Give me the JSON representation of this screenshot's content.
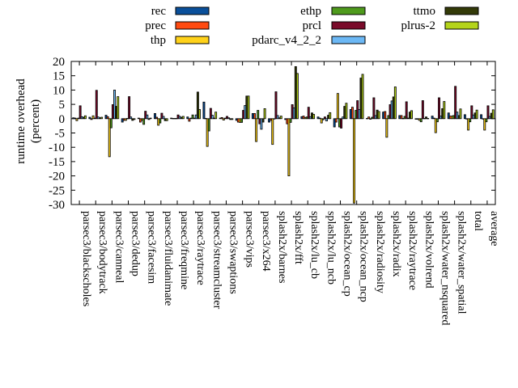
{
  "chart_data": {
    "type": "bar",
    "ylabel": [
      "runtime overhead",
      "(percent)"
    ],
    "ylim": [
      -30,
      20
    ],
    "yticks": [
      20,
      15,
      10,
      5,
      0,
      -5,
      -10,
      -15,
      -20,
      -25,
      -30
    ],
    "legend_position": "top",
    "categories": [
      "parsec3/blackscholes",
      "parsec3/bodytrack",
      "parsec3/canneal",
      "parsec3/dedup",
      "parsec3/facesim",
      "parsec3/fluidanimate",
      "parsec3/freqmine",
      "parsec3/raytrace",
      "parsec3/streamcluster",
      "parsec3/swaptions",
      "parsec3/vips",
      "parsec3/x264",
      "splash2x/barnes",
      "splash2x/fft",
      "splash2x/lu_cb",
      "splash2x/lu_ncb",
      "splash2x/ocean_cp",
      "splash2x/ocean_ncp",
      "splash2x/radiosity",
      "splash2x/radix",
      "splash2x/raytrace",
      "splash2x/volrend",
      "splash2x/water_nsquared",
      "splash2x/water_spatial",
      "total",
      "average"
    ],
    "series": [
      {
        "name": "rec",
        "color": "#0a4f9a",
        "values": [
          0.3,
          0.5,
          1.2,
          -1.2,
          0.2,
          1.8,
          0.2,
          0.6,
          5.8,
          0.2,
          -0.6,
          1.8,
          -1.2,
          -0.3,
          0.7,
          0.6,
          -2.9,
          3.2,
          0.1,
          2.3,
          1.1,
          -0.2,
          0.9,
          2.0,
          1.4,
          1.4
        ]
      },
      {
        "name": "prec",
        "color": "#ff4a10",
        "values": [
          0.2,
          -0.3,
          0.7,
          -0.6,
          -1.2,
          0.5,
          0.1,
          -0.9,
          0.1,
          0.4,
          -1.2,
          1.8,
          -0.6,
          -1.8,
          0.9,
          0.2,
          -1.2,
          4.0,
          0.6,
          2.5,
          1.1,
          -0.2,
          0.2,
          0.9,
          0.0,
          0.0
        ]
      },
      {
        "name": "thp",
        "color": "#ffd21a",
        "values": [
          -0.7,
          1.0,
          -13.3,
          -0.6,
          -0.6,
          -2.3,
          0.1,
          0.2,
          -9.7,
          -0.5,
          -1.3,
          -8.0,
          -9.0,
          -20.0,
          0.4,
          -1.5,
          8.8,
          -29.5,
          -0.2,
          -6.5,
          0.1,
          -0.6,
          -4.9,
          0.9,
          -4.0,
          -4.0
        ]
      },
      {
        "name": "ethp",
        "color": "#4e9a1c",
        "values": [
          0.2,
          0.2,
          -3.2,
          0.1,
          -2.0,
          -1.5,
          0.1,
          1.3,
          -4.3,
          0.2,
          -1.3,
          2.9,
          0.0,
          -1.3,
          0.6,
          -0.4,
          -2.9,
          2.9,
          0.5,
          1.1,
          0.8,
          -1.1,
          -1.1,
          1.1,
          -1.1,
          -1.1
        ]
      },
      {
        "name": "prcl",
        "color": "#7a0a2a",
        "values": [
          4.5,
          9.9,
          4.9,
          7.7,
          2.6,
          1.9,
          1.3,
          0.2,
          3.6,
          0.8,
          2.9,
          -1.8,
          9.4,
          4.9,
          4.0,
          0.6,
          -3.3,
          6.3,
          7.3,
          4.9,
          5.9,
          6.3,
          7.3,
          11.3,
          4.5,
          4.5
        ]
      },
      {
        "name": "pdarc_v4_2_2",
        "color": "#6cb8f5",
        "values": [
          0.7,
          0.6,
          10.0,
          0.6,
          1.3,
          0.8,
          0.8,
          1.3,
          1.2,
          0.3,
          4.6,
          -3.7,
          1.1,
          3.8,
          0.7,
          -0.8,
          0.6,
          3.2,
          1.1,
          6.2,
          0.2,
          0.1,
          0.9,
          2.3,
          1.3,
          0.8
        ]
      },
      {
        "name": "ttmo",
        "color": "#333a08",
        "values": [
          0.5,
          0.3,
          4.3,
          -0.6,
          -0.3,
          -0.7,
          0.5,
          9.3,
          0.2,
          -0.3,
          7.9,
          -1.2,
          0.3,
          18.2,
          2.0,
          1.2,
          4.3,
          14.2,
          3.0,
          7.6,
          2.3,
          0.6,
          3.5,
          1.1,
          2.0,
          1.9
        ]
      },
      {
        "name": "plrus-2",
        "color": "#b4d41a",
        "values": [
          1.0,
          0.5,
          7.7,
          -0.3,
          0.2,
          -0.7,
          0.8,
          3.2,
          2.3,
          -0.3,
          7.9,
          3.5,
          0.9,
          15.8,
          1.5,
          2.1,
          5.4,
          15.5,
          2.5,
          11.1,
          2.8,
          0.1,
          6.0,
          3.4,
          3.0,
          3.1
        ]
      }
    ]
  }
}
